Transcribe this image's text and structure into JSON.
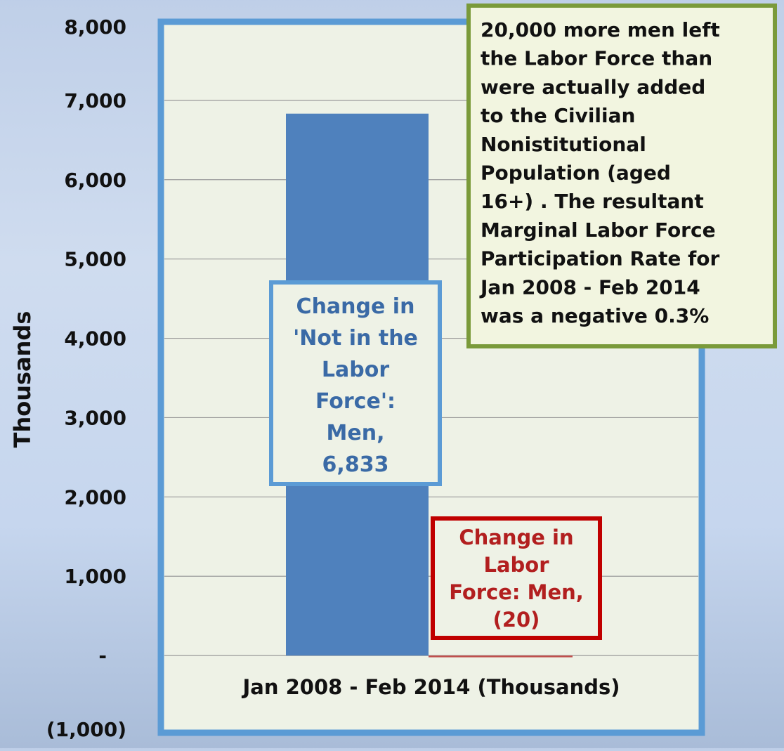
{
  "chart_data": {
    "type": "bar",
    "title": "",
    "xlabel": "Jan 2008 - Feb 2014 (Thousands)",
    "ylabel": "Thousands",
    "ylim": [
      -1000,
      8000
    ],
    "y_ticks": [
      {
        "value": 8000,
        "label": "8,000"
      },
      {
        "value": 7000,
        "label": "7,000"
      },
      {
        "value": 6000,
        "label": "6,000"
      },
      {
        "value": 5000,
        "label": "5,000"
      },
      {
        "value": 4000,
        "label": "4,000"
      },
      {
        "value": 3000,
        "label": "3,000"
      },
      {
        "value": 2000,
        "label": "2,000"
      },
      {
        "value": 1000,
        "label": "1,000"
      },
      {
        "value": 0,
        "label": "-"
      },
      {
        "value": -1000,
        "label": "(1,000)"
      }
    ],
    "grid": true,
    "series": [
      {
        "label_lines": [
          "Change in",
          "'Not in the",
          "Labor",
          "Force':",
          "Men,",
          "6,833"
        ],
        "value": 6833,
        "color": "#4f81bd",
        "label_color": "#3a6aa6"
      },
      {
        "label_lines": [
          "Change in",
          "Labor",
          "Force: Men,",
          "(20)"
        ],
        "value": -20,
        "color": "#c0504d",
        "label_color": "#b21f1f"
      }
    ],
    "annotation": {
      "lines": [
        "20,000 more men left",
        "the  Labor Force than",
        "were actually added",
        "to the  Civilian",
        "Nonistitutional",
        "Population (aged",
        "16+) .  The resultant",
        "Marginal Labor Force",
        "Participation  Rate for",
        "Jan 2008 - Feb 2014",
        "was a negative 0.3%"
      ],
      "border_color": "#7a9a3a",
      "background": "#f2f5e0"
    },
    "plot_border_color": "#5b9bd5",
    "plot_background": "#eef2e6"
  }
}
